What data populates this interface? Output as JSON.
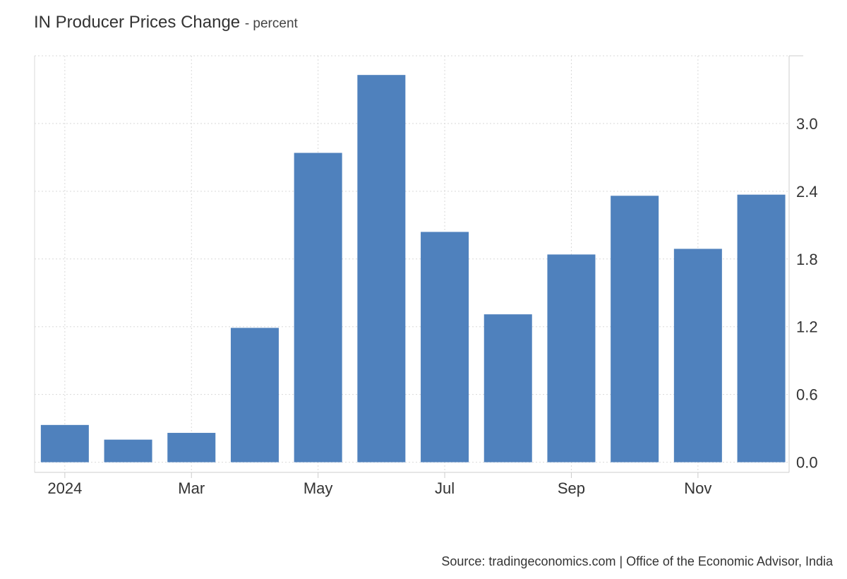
{
  "header": {
    "title": "IN Producer Prices Change",
    "subtitle": "- percent"
  },
  "source": "Source: tradingeconomics.com | Office of the Economic Advisor, India",
  "colors": {
    "bar": "#4f81bd",
    "grid": "#d9d9d9",
    "axis": "#cccccc",
    "text": "#333333"
  },
  "chart_data": {
    "type": "bar",
    "title": "IN Producer Prices Change",
    "subtitle": "- percent",
    "categories": [
      "2024-01",
      "2024-02",
      "2024-03",
      "2024-04",
      "2024-05",
      "2024-06",
      "2024-07",
      "2024-08",
      "2024-09",
      "2024-10",
      "2024-11",
      "2024-12"
    ],
    "values": [
      0.33,
      0.2,
      0.26,
      1.19,
      2.74,
      3.43,
      2.04,
      1.31,
      1.84,
      2.36,
      1.89,
      2.37
    ],
    "x_tick_labels": [
      {
        "category": "2024-01",
        "label": "2024"
      },
      {
        "category": "2024-03",
        "label": "Mar"
      },
      {
        "category": "2024-05",
        "label": "May"
      },
      {
        "category": "2024-07",
        "label": "Jul"
      },
      {
        "category": "2024-09",
        "label": "Sep"
      },
      {
        "category": "2024-11",
        "label": "Nov"
      }
    ],
    "y_ticks": [
      0.0,
      0.6,
      1.2,
      1.8,
      2.4,
      3.0
    ],
    "y_tick_labels": [
      "0.0",
      "0.6",
      "1.2",
      "1.8",
      "2.4",
      "3.0"
    ],
    "ylim": [
      -0.09,
      3.6
    ],
    "y_axis_position": "right",
    "grid": true,
    "legend": false
  }
}
